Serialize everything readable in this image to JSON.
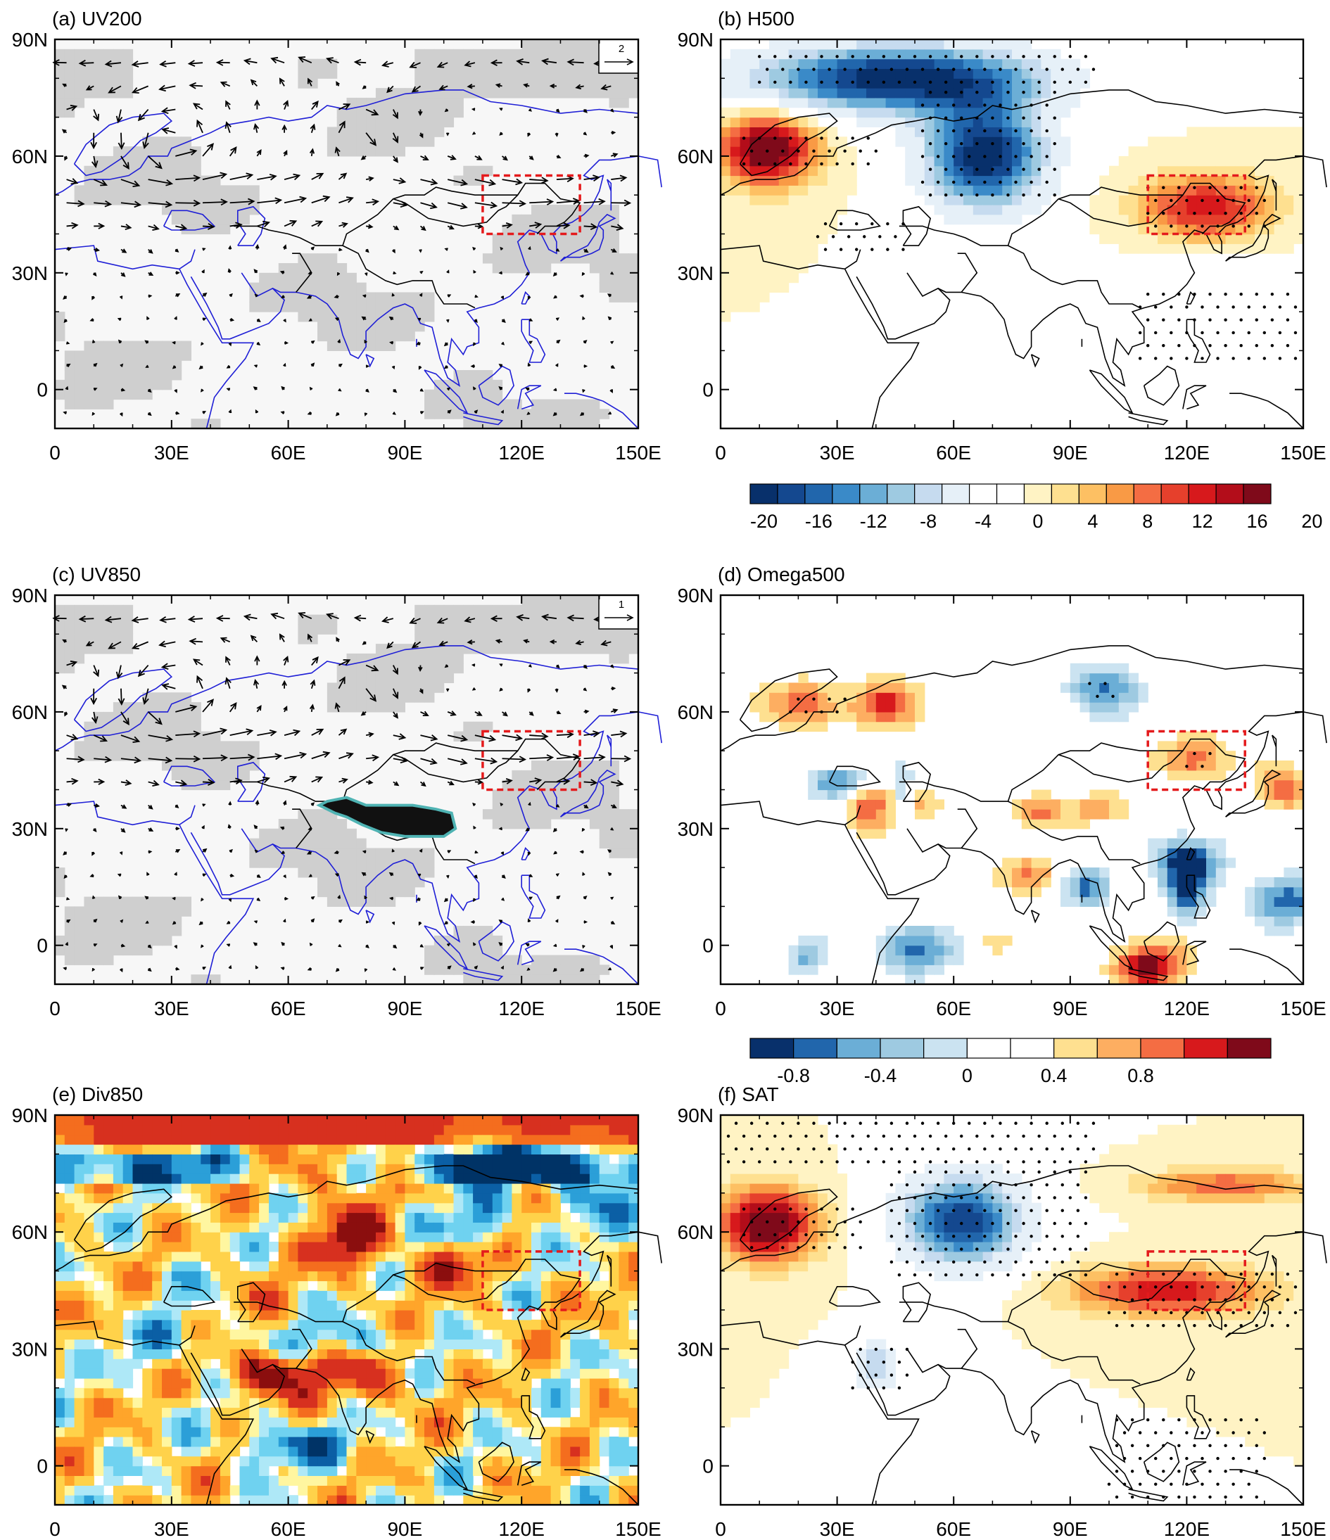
{
  "figure": {
    "x_ticks": [
      "0",
      "30E",
      "60E",
      "90E",
      "120E",
      "150E"
    ],
    "y_ticks": [
      "90N",
      "60N",
      "30N",
      "0"
    ],
    "target_box": {
      "lon": [
        110,
        135
      ],
      "lat": [
        40,
        55
      ],
      "color": "#e41a1c"
    },
    "land_outline_colors": {
      "wind_panels": "#1f1fd6",
      "other_panels": "#000000"
    },
    "wind_shading_colors": [
      "#f7f7f7",
      "#cfcfcf"
    ],
    "tibet_plateau": {
      "fill": "#111111",
      "outline": "#4fb3b3"
    }
  },
  "panels": [
    {
      "id": "a",
      "title": "(a) UV200",
      "kind": "wind",
      "vector_ref": "2"
    },
    {
      "id": "b",
      "title": "(b) H500",
      "kind": "filled"
    },
    {
      "id": "c",
      "title": "(c) UV850",
      "kind": "wind",
      "vector_ref": "1"
    },
    {
      "id": "d",
      "title": "(d) Omega500",
      "kind": "filled"
    },
    {
      "id": "e",
      "title": "(e) Div850",
      "kind": "filled"
    },
    {
      "id": "f",
      "title": "(f) SAT",
      "kind": "filled"
    }
  ],
  "colorbars": {
    "h500": {
      "labels": [
        "-20",
        "-16",
        "-12",
        "-8",
        "-4",
        "0",
        "4",
        "8",
        "12",
        "16",
        "20"
      ],
      "colors": [
        "#08306b",
        "#14488f",
        "#2166ac",
        "#3a8ac8",
        "#6baed6",
        "#9ecae1",
        "#c6dbef",
        "#e6f0f8",
        "#ffffff",
        "#ffffff",
        "#fff3c4",
        "#fee090",
        "#fdc063",
        "#f99a45",
        "#f46d43",
        "#e6402c",
        "#d7191c",
        "#b30d1a",
        "#7f0a1a"
      ]
    },
    "omega500": {
      "labels": [
        "-0.8",
        "-0.4",
        "0",
        "0.4",
        "0.8"
      ],
      "colors": [
        "#08306b",
        "#2166ac",
        "#6baed6",
        "#9ecae1",
        "#cbe3f1",
        "#ffffff",
        "#ffffff",
        "#fee090",
        "#fdae61",
        "#f46d43",
        "#d7191c",
        "#7f0a1a"
      ]
    }
  },
  "chart_data": [
    {
      "type": "vector-field",
      "title": "(a) UV200",
      "x_range_lon": [
        0,
        150
      ],
      "y_range_lat": [
        -10,
        90
      ],
      "reference_vector": 2,
      "features": [
        {
          "name": "westerly jet",
          "lat": 50,
          "lon_range": [
            0,
            150
          ],
          "direction": "eastward"
        },
        {
          "name": "cyclonic circulation",
          "lon": 30,
          "lat": 63
        },
        {
          "name": "anticyclonic circulation",
          "lon": 75,
          "lat": 65
        },
        {
          "name": "polar easterlies",
          "lat": 82,
          "direction": "westward"
        }
      ]
    },
    {
      "type": "heatmap",
      "title": "(b) H500",
      "x_range_lon": [
        0,
        150
      ],
      "y_range_lat": [
        -10,
        90
      ],
      "colorbar_range": [
        -22,
        22
      ],
      "anomalies": [
        {
          "sign": "negative",
          "lon": 45,
          "lat": 80,
          "peak": -22
        },
        {
          "sign": "negative",
          "lon": 68,
          "lat": 60,
          "peak": -22
        },
        {
          "sign": "positive",
          "lon": 12,
          "lat": 62,
          "peak": 20
        },
        {
          "sign": "positive",
          "lon": 125,
          "lat": 47,
          "peak": 14
        },
        {
          "sign": "negative",
          "lon": 125,
          "lat": 18,
          "peak": -4
        }
      ]
    },
    {
      "type": "vector-field",
      "title": "(c) UV850",
      "x_range_lon": [
        0,
        150
      ],
      "y_range_lat": [
        -10,
        90
      ],
      "reference_vector": 1,
      "features": [
        {
          "name": "cyclonic circulation",
          "lon": 28,
          "lat": 62
        },
        {
          "name": "anticyclonic circulation",
          "lon": 80,
          "lat": 65
        },
        {
          "name": "westerlies",
          "lat": 50,
          "direction": "eastward"
        }
      ]
    },
    {
      "type": "heatmap",
      "title": "(d) Omega500",
      "x_range_lon": [
        0,
        150
      ],
      "y_range_lat": [
        -10,
        90
      ],
      "colorbar_range": [
        -1.2,
        1.2
      ],
      "anomalies": [
        {
          "sign": "positive",
          "lon": 22,
          "lat": 62,
          "peak": 0.8
        },
        {
          "sign": "positive",
          "lon": 42,
          "lat": 62,
          "peak": 0.8
        },
        {
          "sign": "positive",
          "lon": 122,
          "lat": 48,
          "peak": 0.8
        },
        {
          "sign": "positive",
          "lon": 110,
          "lat": -5,
          "peak": 1.2
        },
        {
          "sign": "negative",
          "lon": 98,
          "lat": 66,
          "peak": -0.8
        },
        {
          "sign": "negative",
          "lon": 120,
          "lat": 22,
          "peak": -1.0
        },
        {
          "sign": "negative",
          "lon": 145,
          "lat": 12,
          "peak": -1.0
        },
        {
          "sign": "negative",
          "lon": 50,
          "lat": -1,
          "peak": -1.0
        }
      ]
    },
    {
      "type": "heatmap",
      "title": "(e) Div850",
      "x_range_lon": [
        0,
        150
      ],
      "y_range_lat": [
        -10,
        90
      ],
      "description_scale": "blue=convergence, red=divergence"
    },
    {
      "type": "heatmap",
      "title": "(f) SAT",
      "x_range_lon": [
        0,
        150
      ],
      "y_range_lat": [
        -10,
        90
      ],
      "colorbar": "h500",
      "anomalies": [
        {
          "sign": "negative",
          "lon": 62,
          "lat": 63,
          "peak": -20
        },
        {
          "sign": "positive",
          "lon": 12,
          "lat": 62,
          "peak": 20
        },
        {
          "sign": "positive",
          "lon": 115,
          "lat": 45,
          "peak": 14
        },
        {
          "sign": "positive",
          "lon": 130,
          "lat": 72,
          "peak": 10
        },
        {
          "sign": "negative",
          "lon": 40,
          "lat": 26,
          "peak": -10
        }
      ]
    }
  ]
}
